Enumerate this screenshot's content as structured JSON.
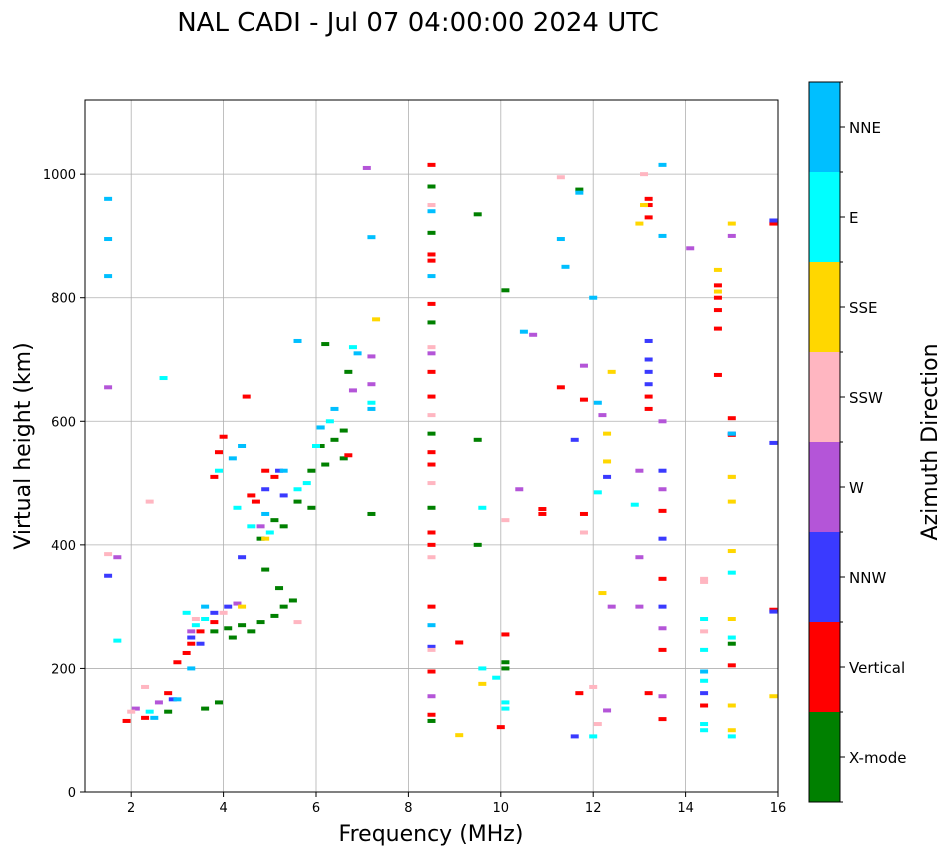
{
  "chart_data": {
    "type": "scatter",
    "title": "NAL CADI - Jul 07 04:00:00 2024 UTC",
    "xlabel": "Frequency (MHz)",
    "ylabel": "Virtual height (km)",
    "xlim": [
      1,
      16
    ],
    "ylim": [
      0,
      1120
    ],
    "xticks": [
      2,
      4,
      6,
      8,
      10,
      12,
      14,
      16
    ],
    "yticks": [
      0,
      200,
      400,
      600,
      800,
      1000
    ],
    "grid": true,
    "colorbar": {
      "label": "Azimuth Direction",
      "categories": [
        "X-mode",
        "Vertical",
        "NNW",
        "W",
        "SSW",
        "SSE",
        "E",
        "NNE"
      ],
      "colors": [
        "#008000",
        "#ff0000",
        "#3a3aff",
        "#b455d8",
        "#ffb6c1",
        "#ffd700",
        "#00ffff",
        "#00bfff"
      ]
    },
    "series": [
      {
        "name": "X-mode",
        "points": [
          [
            3.6,
            135
          ],
          [
            3.9,
            145
          ],
          [
            3.8,
            260
          ],
          [
            4.1,
            265
          ],
          [
            4.2,
            250
          ],
          [
            4.6,
            260
          ],
          [
            4.8,
            275
          ],
          [
            5.1,
            285
          ],
          [
            5.3,
            300
          ],
          [
            5.5,
            310
          ],
          [
            5.2,
            330
          ],
          [
            4.9,
            360
          ],
          [
            4.8,
            410
          ],
          [
            5.1,
            440
          ],
          [
            5.3,
            430
          ],
          [
            5.6,
            470
          ],
          [
            5.9,
            460
          ],
          [
            5.9,
            520
          ],
          [
            6.1,
            560
          ],
          [
            6.2,
            530
          ],
          [
            6.4,
            570
          ],
          [
            6.6,
            585
          ],
          [
            6.6,
            540
          ],
          [
            6.7,
            680
          ],
          [
            6.2,
            725
          ],
          [
            7.2,
            450
          ],
          [
            8.5,
            115
          ],
          [
            8.5,
            760
          ],
          [
            8.5,
            580
          ],
          [
            8.5,
            460
          ],
          [
            8.5,
            905
          ],
          [
            8.5,
            980
          ],
          [
            9.5,
            400
          ],
          [
            9.5,
            570
          ],
          [
            9.5,
            935
          ],
          [
            10.1,
            200
          ],
          [
            10.1,
            210
          ],
          [
            10.1,
            812
          ],
          [
            11.7,
            975
          ],
          [
            15.0,
            240
          ],
          [
            2.8,
            130
          ],
          [
            4.4,
            270
          ]
        ]
      },
      {
        "name": "Vertical",
        "points": [
          [
            1.9,
            115
          ],
          [
            2.3,
            120
          ],
          [
            2.8,
            160
          ],
          [
            3.0,
            210
          ],
          [
            3.2,
            225
          ],
          [
            3.3,
            240
          ],
          [
            3.5,
            260
          ],
          [
            3.8,
            275
          ],
          [
            3.8,
            510
          ],
          [
            3.9,
            550
          ],
          [
            4.0,
            575
          ],
          [
            4.5,
            640
          ],
          [
            4.6,
            480
          ],
          [
            4.7,
            470
          ],
          [
            4.9,
            520
          ],
          [
            5.1,
            510
          ],
          [
            6.7,
            545
          ],
          [
            8.5,
            125
          ],
          [
            8.5,
            195
          ],
          [
            8.5,
            300
          ],
          [
            8.5,
            400
          ],
          [
            8.5,
            420
          ],
          [
            8.5,
            530
          ],
          [
            8.5,
            550
          ],
          [
            8.5,
            640
          ],
          [
            8.5,
            680
          ],
          [
            8.5,
            790
          ],
          [
            8.5,
            860
          ],
          [
            8.5,
            870
          ],
          [
            8.5,
            1015
          ],
          [
            9.1,
            242
          ],
          [
            10.0,
            105
          ],
          [
            10.1,
            255
          ],
          [
            10.9,
            450
          ],
          [
            10.9,
            458
          ],
          [
            11.3,
            655
          ],
          [
            11.7,
            160
          ],
          [
            11.8,
            450
          ],
          [
            11.8,
            635
          ],
          [
            13.2,
            930
          ],
          [
            13.2,
            950
          ],
          [
            13.2,
            960
          ],
          [
            13.2,
            640
          ],
          [
            13.2,
            620
          ],
          [
            13.2,
            160
          ],
          [
            13.5,
            118
          ],
          [
            13.5,
            230
          ],
          [
            13.5,
            345
          ],
          [
            13.5,
            455
          ],
          [
            14.4,
            140
          ],
          [
            14.7,
            675
          ],
          [
            14.7,
            750
          ],
          [
            14.7,
            780
          ],
          [
            14.7,
            800
          ],
          [
            14.7,
            820
          ],
          [
            15.0,
            205
          ],
          [
            15.0,
            578
          ],
          [
            15.0,
            605
          ],
          [
            15.9,
            295
          ],
          [
            15.9,
            920
          ]
        ]
      },
      {
        "name": "NNW",
        "points": [
          [
            1.5,
            350
          ],
          [
            2.9,
            150
          ],
          [
            3.3,
            250
          ],
          [
            3.5,
            240
          ],
          [
            3.8,
            290
          ],
          [
            4.1,
            300
          ],
          [
            4.4,
            380
          ],
          [
            4.9,
            490
          ],
          [
            5.2,
            520
          ],
          [
            5.3,
            480
          ],
          [
            8.5,
            235
          ],
          [
            11.6,
            90
          ],
          [
            11.6,
            570
          ],
          [
            12.3,
            510
          ],
          [
            13.2,
            730
          ],
          [
            13.2,
            700
          ],
          [
            13.2,
            680
          ],
          [
            13.2,
            660
          ],
          [
            13.5,
            300
          ],
          [
            13.5,
            410
          ],
          [
            13.5,
            520
          ],
          [
            14.4,
            160
          ],
          [
            15.0,
            580
          ],
          [
            15.9,
            292
          ],
          [
            15.9,
            565
          ],
          [
            15.9,
            925
          ]
        ]
      },
      {
        "name": "W",
        "points": [
          [
            1.5,
            655
          ],
          [
            1.7,
            380
          ],
          [
            2.1,
            135
          ],
          [
            2.6,
            145
          ],
          [
            3.3,
            260
          ],
          [
            4.3,
            305
          ],
          [
            4.8,
            430
          ],
          [
            6.8,
            650
          ],
          [
            7.2,
            660
          ],
          [
            7.2,
            705
          ],
          [
            8.5,
            155
          ],
          [
            8.5,
            710
          ],
          [
            10.4,
            490
          ],
          [
            10.7,
            740
          ],
          [
            11.8,
            690
          ],
          [
            12.2,
            610
          ],
          [
            12.3,
            132
          ],
          [
            12.4,
            300
          ],
          [
            13.0,
            520
          ],
          [
            13.0,
            380
          ],
          [
            13.0,
            300
          ],
          [
            13.5,
            155
          ],
          [
            13.5,
            265
          ],
          [
            13.5,
            490
          ],
          [
            13.5,
            600
          ],
          [
            14.1,
            880
          ],
          [
            15.0,
            900
          ],
          [
            7.1,
            1010
          ]
        ]
      },
      {
        "name": "SSW",
        "points": [
          [
            1.5,
            385
          ],
          [
            2.0,
            130
          ],
          [
            2.3,
            170
          ],
          [
            2.4,
            470
          ],
          [
            3.4,
            280
          ],
          [
            4.0,
            290
          ],
          [
            5.6,
            275
          ],
          [
            8.5,
            230
          ],
          [
            8.5,
            380
          ],
          [
            8.5,
            500
          ],
          [
            8.5,
            610
          ],
          [
            8.5,
            720
          ],
          [
            8.5,
            950
          ],
          [
            10.1,
            440
          ],
          [
            11.3,
            995
          ],
          [
            11.8,
            420
          ],
          [
            12.0,
            170
          ],
          [
            12.1,
            110
          ],
          [
            13.1,
            1000
          ],
          [
            14.4,
            260
          ],
          [
            14.4,
            345
          ],
          [
            15.0,
            510
          ],
          [
            14.4,
            340
          ]
        ]
      },
      {
        "name": "SSE",
        "points": [
          [
            4.4,
            300
          ],
          [
            4.9,
            410
          ],
          [
            7.3,
            765
          ],
          [
            9.1,
            92
          ],
          [
            9.6,
            175
          ],
          [
            12.2,
            322
          ],
          [
            12.3,
            535
          ],
          [
            12.3,
            580
          ],
          [
            12.4,
            680
          ],
          [
            13.0,
            920
          ],
          [
            13.1,
            950
          ],
          [
            14.7,
            845
          ],
          [
            14.7,
            810
          ],
          [
            15.0,
            100
          ],
          [
            15.0,
            140
          ],
          [
            15.0,
            280
          ],
          [
            15.0,
            390
          ],
          [
            15.0,
            470
          ],
          [
            15.0,
            510
          ],
          [
            15.0,
            920
          ],
          [
            15.9,
            155
          ]
        ]
      },
      {
        "name": "E",
        "points": [
          [
            1.7,
            245
          ],
          [
            2.4,
            130
          ],
          [
            2.7,
            670
          ],
          [
            3.2,
            290
          ],
          [
            3.4,
            270
          ],
          [
            3.6,
            280
          ],
          [
            3.9,
            520
          ],
          [
            4.3,
            460
          ],
          [
            4.6,
            430
          ],
          [
            5.0,
            420
          ],
          [
            5.6,
            490
          ],
          [
            5.8,
            500
          ],
          [
            6.0,
            560
          ],
          [
            6.1,
            590
          ],
          [
            6.3,
            600
          ],
          [
            6.8,
            720
          ],
          [
            7.2,
            630
          ],
          [
            9.6,
            200
          ],
          [
            9.6,
            460
          ],
          [
            9.9,
            185
          ],
          [
            10.1,
            135
          ],
          [
            10.1,
            145
          ],
          [
            14.4,
            100
          ],
          [
            14.4,
            110
          ],
          [
            14.4,
            180
          ],
          [
            14.4,
            230
          ],
          [
            14.4,
            280
          ],
          [
            15.0,
            90
          ],
          [
            15.0,
            250
          ],
          [
            15.0,
            355
          ],
          [
            12.0,
            90
          ],
          [
            12.1,
            485
          ],
          [
            12.9,
            465
          ]
        ]
      },
      {
        "name": "NNE",
        "points": [
          [
            1.5,
            960
          ],
          [
            1.5,
            835
          ],
          [
            1.5,
            895
          ],
          [
            2.5,
            120
          ],
          [
            3.0,
            150
          ],
          [
            3.3,
            200
          ],
          [
            3.6,
            300
          ],
          [
            4.2,
            540
          ],
          [
            4.4,
            560
          ],
          [
            4.9,
            450
          ],
          [
            5.3,
            520
          ],
          [
            5.6,
            730
          ],
          [
            6.1,
            590
          ],
          [
            6.4,
            620
          ],
          [
            6.9,
            710
          ],
          [
            7.2,
            620
          ],
          [
            7.2,
            898
          ],
          [
            8.5,
            835
          ],
          [
            8.5,
            940
          ],
          [
            8.5,
            270
          ],
          [
            10.5,
            745
          ],
          [
            11.3,
            895
          ],
          [
            11.4,
            850
          ],
          [
            11.7,
            970
          ],
          [
            12.0,
            800
          ],
          [
            12.1,
            630
          ],
          [
            13.5,
            900
          ],
          [
            13.5,
            1015
          ],
          [
            14.4,
            195
          ],
          [
            15.0,
            580
          ]
        ]
      }
    ]
  }
}
